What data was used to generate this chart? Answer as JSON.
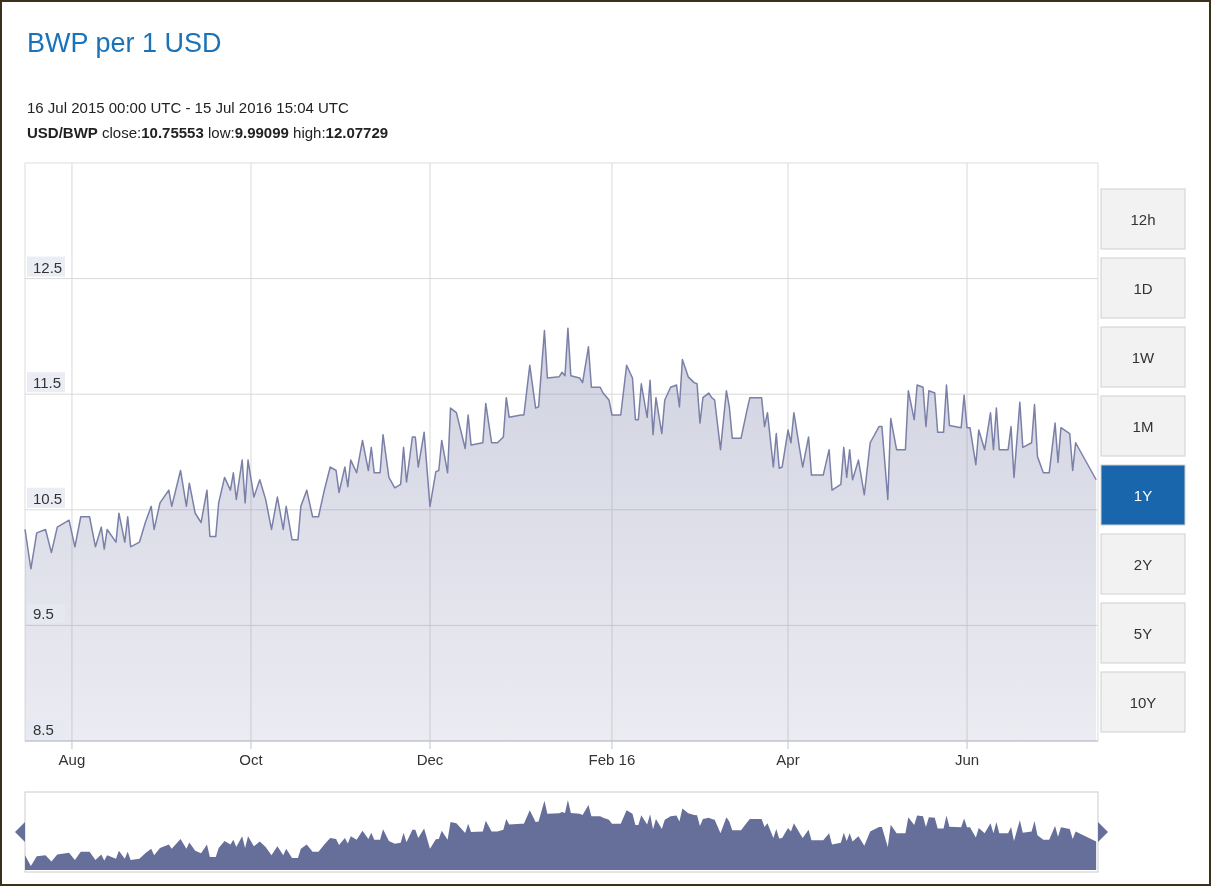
{
  "chart_data": {
    "type": "area",
    "title": "BWP per 1 USD",
    "subtitle": "16 Jul 2015 00:00 UTC - 15 Jul 2016 15:04 UTC",
    "annotations": [
      "USD/BWP close:10.75553 low:9.99099 high:12.07729",
      "12h",
      "1D",
      "1W",
      "1M",
      "1Y",
      "2Y",
      "5Y",
      "10Y"
    ],
    "xlim": [
      "2015-07-16",
      "2016-07-15T15:04"
    ],
    "xticks": [
      {
        "value": "2015-08-01",
        "label": "Aug"
      },
      {
        "value": "2015-10-01",
        "label": "Oct"
      },
      {
        "value": "2015-12-01",
        "label": "Dec"
      },
      {
        "value": "2016-02-01",
        "label": "Feb 16"
      },
      {
        "value": "2016-04-01",
        "label": "Apr"
      },
      {
        "value": "2016-06-01",
        "label": "Jun"
      }
    ],
    "ylim": [
      8.5,
      13.5
    ],
    "yticks": [
      8.5,
      9.5,
      10.5,
      11.5,
      12.5
    ],
    "grid": true,
    "series": [
      {
        "color": "#7b80a8",
        "x": [
          "2015-07-16",
          "2015-07-18",
          "2015-07-20",
          "2015-07-23",
          "2015-07-25",
          "2015-07-27",
          "2015-07-31",
          "2015-08-02",
          "2015-08-04",
          "2015-08-07",
          "2015-08-09",
          "2015-08-11",
          "2015-08-12",
          "2015-08-13",
          "2015-08-16",
          "2015-08-17",
          "2015-08-19",
          "2015-08-20",
          "2015-08-21",
          "2015-08-24",
          "2015-08-26",
          "2015-08-28",
          "2015-08-29",
          "2015-08-31",
          "2015-09-03",
          "2015-09-04",
          "2015-09-07",
          "2015-09-09",
          "2015-09-10",
          "2015-09-12",
          "2015-09-14",
          "2015-09-16",
          "2015-09-17",
          "2015-09-19",
          "2015-09-20",
          "2015-09-22",
          "2015-09-24",
          "2015-09-25",
          "2015-09-26",
          "2015-09-28",
          "2015-09-29",
          "2015-09-30",
          "2015-10-02",
          "2015-10-04",
          "2015-10-06",
          "2015-10-08",
          "2015-10-10",
          "2015-10-12",
          "2015-10-13",
          "2015-10-15",
          "2015-10-17",
          "2015-10-18",
          "2015-10-20",
          "2015-10-22",
          "2015-10-24",
          "2015-10-26",
          "2015-10-28",
          "2015-10-30",
          "2015-10-31",
          "2015-11-02",
          "2015-11-03",
          "2015-11-04",
          "2015-11-06",
          "2015-11-08",
          "2015-11-10",
          "2015-11-11",
          "2015-11-12",
          "2015-11-14",
          "2015-11-15",
          "2015-11-17",
          "2015-11-19",
          "2015-11-21",
          "2015-11-22",
          "2015-11-23",
          "2015-11-25",
          "2015-11-26",
          "2015-11-27",
          "2015-11-29",
          "2015-12-01",
          "2015-12-03",
          "2015-12-04",
          "2015-12-05",
          "2015-12-07",
          "2015-12-08",
          "2015-12-10",
          "2015-12-13",
          "2015-12-14",
          "2015-12-15",
          "2015-12-19",
          "2015-12-20",
          "2015-12-22",
          "2015-12-24",
          "2015-12-26",
          "2015-12-27",
          "2015-12-28",
          "2016-01-01",
          "2016-01-02",
          "2016-01-04",
          "2016-01-06",
          "2016-01-07",
          "2016-01-09",
          "2016-01-10",
          "2016-01-14",
          "2016-01-15",
          "2016-01-16",
          "2016-01-17",
          "2016-01-18",
          "2016-01-21",
          "2016-01-22",
          "2016-01-24",
          "2016-01-25",
          "2016-01-28",
          "2016-01-29",
          "2016-01-31",
          "2016-02-01",
          "2016-02-04",
          "2016-02-06",
          "2016-02-08",
          "2016-02-09",
          "2016-02-10",
          "2016-02-11",
          "2016-02-13",
          "2016-02-14",
          "2016-02-15",
          "2016-02-16",
          "2016-02-18",
          "2016-02-19",
          "2016-02-21",
          "2016-02-23",
          "2016-02-24",
          "2016-02-25",
          "2016-02-27",
          "2016-02-29",
          "2016-03-01",
          "2016-03-02",
          "2016-03-03",
          "2016-03-05",
          "2016-03-06",
          "2016-03-07",
          "2016-03-09",
          "2016-03-11",
          "2016-03-12",
          "2016-03-13",
          "2016-03-16",
          "2016-03-18",
          "2016-03-19",
          "2016-03-23",
          "2016-03-24",
          "2016-03-25",
          "2016-03-27",
          "2016-03-28",
          "2016-03-29",
          "2016-03-30",
          "2016-04-01",
          "2016-04-02",
          "2016-04-03",
          "2016-04-05",
          "2016-04-06",
          "2016-04-08",
          "2016-04-09",
          "2016-04-13",
          "2016-04-15",
          "2016-04-16",
          "2016-04-19",
          "2016-04-20",
          "2016-04-21",
          "2016-04-22",
          "2016-04-23",
          "2016-04-25",
          "2016-04-27",
          "2016-04-29",
          "2016-05-02",
          "2016-05-03",
          "2016-05-05",
          "2016-05-06",
          "2016-05-08",
          "2016-05-11",
          "2016-05-12",
          "2016-05-14",
          "2016-05-15",
          "2016-05-17",
          "2016-05-18",
          "2016-05-19",
          "2016-05-21",
          "2016-05-22",
          "2016-05-24",
          "2016-05-25",
          "2016-05-26",
          "2016-05-30",
          "2016-05-31",
          "2016-06-01",
          "2016-06-02",
          "2016-06-04",
          "2016-06-05",
          "2016-06-07",
          "2016-06-09",
          "2016-06-10",
          "2016-06-11",
          "2016-06-12",
          "2016-06-15",
          "2016-06-16",
          "2016-06-17",
          "2016-06-19",
          "2016-06-20",
          "2016-06-23",
          "2016-06-24",
          "2016-06-25",
          "2016-06-27",
          "2016-06-29",
          "2016-07-01",
          "2016-07-02",
          "2016-07-03",
          "2016-07-06",
          "2016-07-07",
          "2016-07-08",
          "2016-07-15"
        ],
        "values": [
          10.33,
          9.99,
          10.3,
          10.33,
          10.13,
          10.35,
          10.41,
          10.18,
          10.44,
          10.44,
          10.18,
          10.35,
          10.16,
          10.33,
          10.22,
          10.47,
          10.22,
          10.44,
          10.18,
          10.22,
          10.39,
          10.53,
          10.33,
          10.56,
          10.67,
          10.53,
          10.84,
          10.53,
          10.73,
          10.47,
          10.39,
          10.67,
          10.27,
          10.27,
          10.56,
          10.78,
          10.67,
          10.82,
          10.59,
          10.93,
          10.56,
          10.93,
          10.61,
          10.76,
          10.59,
          10.33,
          10.61,
          10.33,
          10.53,
          10.24,
          10.24,
          10.53,
          10.67,
          10.44,
          10.44,
          10.67,
          10.87,
          10.84,
          10.65,
          10.87,
          10.7,
          10.93,
          10.82,
          11.1,
          10.84,
          11.04,
          10.82,
          10.82,
          11.15,
          10.78,
          10.69,
          10.72,
          11.04,
          10.74,
          11.13,
          11.13,
          10.87,
          11.17,
          10.53,
          10.83,
          10.84,
          11.1,
          10.82,
          11.38,
          11.34,
          11.03,
          11.32,
          11.06,
          11.08,
          11.42,
          11.08,
          11.08,
          11.13,
          11.47,
          11.3,
          11.32,
          11.32,
          11.75,
          11.38,
          11.39,
          12.05,
          11.64,
          11.65,
          11.69,
          11.66,
          12.07,
          11.66,
          11.64,
          11.6,
          11.91,
          11.56,
          11.56,
          11.51,
          11.45,
          11.32,
          11.32,
          11.75,
          11.64,
          11.28,
          11.28,
          11.59,
          11.3,
          11.62,
          11.15,
          11.47,
          11.16,
          11.45,
          11.56,
          11.58,
          11.39,
          11.8,
          11.65,
          11.6,
          11.59,
          11.25,
          11.47,
          11.51,
          11.47,
          11.45,
          11.02,
          11.53,
          11.39,
          11.12,
          11.12,
          11.36,
          11.47,
          11.47,
          11.22,
          11.34,
          10.87,
          11.16,
          10.86,
          10.87,
          11.19,
          11.08,
          11.34,
          11.02,
          10.87,
          11.13,
          10.8,
          10.8,
          11.02,
          10.67,
          10.72,
          11.04,
          10.78,
          11.02,
          10.76,
          10.93,
          10.63,
          11.08,
          11.22,
          11.22,
          10.59,
          11.29,
          11.02,
          11.02,
          11.53,
          11.28,
          11.58,
          11.56,
          11.22,
          11.53,
          11.51,
          11.17,
          11.17,
          11.58,
          11.23,
          11.21,
          11.49,
          11.21,
          11.21,
          10.89,
          11.19,
          11.02,
          11.34,
          11.02,
          11.38,
          11.02,
          11.02,
          11.22,
          10.78,
          11.43,
          11.04,
          11.08,
          11.41,
          10.96,
          10.82,
          10.82,
          11.25,
          10.91,
          11.21,
          11.16,
          10.84,
          11.08,
          10.76
        ]
      }
    ]
  }
}
